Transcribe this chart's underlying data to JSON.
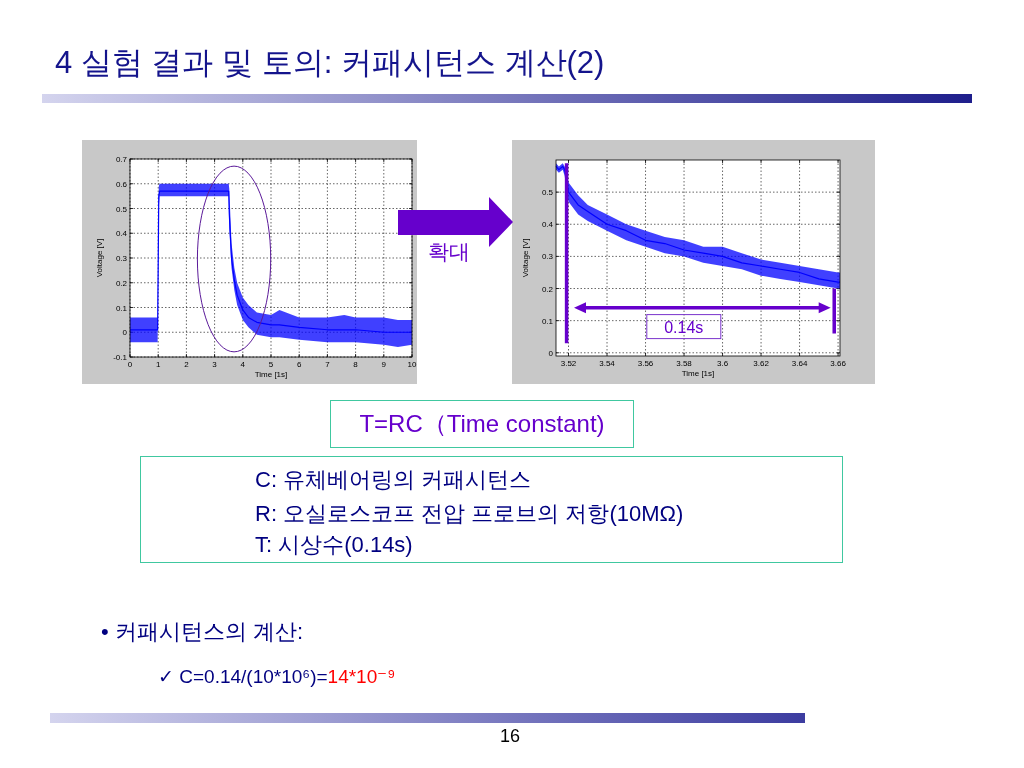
{
  "chart_data": [
    {
      "type": "line",
      "xlabel": "Time [1s]",
      "ylabel": "Voltage [V]",
      "xlim": [
        0,
        10
      ],
      "ylim": [
        -0.1,
        0.7
      ],
      "xticks": [
        0,
        1,
        2,
        3,
        4,
        5,
        6,
        7,
        8,
        9,
        10
      ],
      "yticks": [
        -0.1,
        0,
        0.1,
        0.2,
        0.3,
        0.4,
        0.5,
        0.6,
        0.7
      ],
      "grid": true,
      "series": [
        {
          "color": "#0000ff",
          "x": [
            0,
            0.5,
            0.98,
            1.02,
            1.05,
            2,
            3,
            3.5,
            3.52,
            3.6,
            3.7,
            3.8,
            3.9,
            4.0,
            4.2,
            4.5,
            5,
            5.3,
            6,
            7,
            7.6,
            8,
            9,
            9.5,
            10
          ],
          "values": [
            0.01,
            0.01,
            0.01,
            0.55,
            0.57,
            0.57,
            0.57,
            0.57,
            0.48,
            0.3,
            0.21,
            0.15,
            0.12,
            0.09,
            0.06,
            0.04,
            0.03,
            0.03,
            0.02,
            0.01,
            0.01,
            0.01,
            0,
            0,
            0
          ],
          "lower": [
            -0.04,
            -0.04,
            -0.04,
            0.5,
            0.55,
            0.55,
            0.55,
            0.55,
            0.42,
            0.26,
            0.17,
            0.11,
            0.08,
            0.05,
            0.02,
            -0.01,
            -0.02,
            -0.02,
            -0.03,
            -0.04,
            -0.04,
            -0.04,
            -0.05,
            -0.06,
            -0.05
          ],
          "upper": [
            0.06,
            0.06,
            0.06,
            0.59,
            0.6,
            0.6,
            0.6,
            0.6,
            0.58,
            0.36,
            0.26,
            0.2,
            0.17,
            0.14,
            0.11,
            0.08,
            0.07,
            0.09,
            0.06,
            0.06,
            0.07,
            0.06,
            0.06,
            0.05,
            0.05
          ]
        }
      ]
    },
    {
      "type": "line",
      "xlabel": "Time [1s]",
      "ylabel": "Voltage [V]",
      "xlim": [
        3.5135,
        3.661
      ],
      "ylim": [
        -0.01,
        0.6
      ],
      "xticks": [
        3.52,
        3.54,
        3.56,
        3.58,
        3.6,
        3.62,
        3.64,
        3.66
      ],
      "yticks": [
        0,
        0.1,
        0.2,
        0.3,
        0.4,
        0.5
      ],
      "grid": true,
      "series": [
        {
          "color": "#0000ff",
          "x": [
            3.5135,
            3.515,
            3.517,
            3.518,
            3.519,
            3.52,
            3.525,
            3.53,
            3.54,
            3.55,
            3.56,
            3.57,
            3.58,
            3.59,
            3.6,
            3.61,
            3.62,
            3.63,
            3.64,
            3.65,
            3.66,
            3.661
          ],
          "values": [
            0.58,
            0.57,
            0.58,
            0.57,
            0.54,
            0.5,
            0.46,
            0.44,
            0.4,
            0.38,
            0.35,
            0.34,
            0.32,
            0.31,
            0.3,
            0.28,
            0.27,
            0.26,
            0.25,
            0.23,
            0.22,
            0.22
          ],
          "lower": [
            0.57,
            0.56,
            0.57,
            0.55,
            0.51,
            0.47,
            0.43,
            0.41,
            0.38,
            0.35,
            0.33,
            0.31,
            0.3,
            0.28,
            0.27,
            0.26,
            0.24,
            0.23,
            0.22,
            0.21,
            0.2,
            0.2
          ],
          "upper": [
            0.59,
            0.58,
            0.59,
            0.58,
            0.57,
            0.53,
            0.49,
            0.46,
            0.43,
            0.4,
            0.38,
            0.36,
            0.35,
            0.33,
            0.33,
            0.31,
            0.29,
            0.28,
            0.27,
            0.26,
            0.25,
            0.25
          ]
        },
        {
          "color": "#6600cc",
          "x": [
            3.519,
            3.519
          ],
          "values": [
            0.59,
            0.03
          ]
        },
        {
          "color": "#6600cc",
          "x": [
            3.658,
            3.658
          ],
          "values": [
            0.2,
            0.06
          ]
        },
        {
          "color": "#6600cc",
          "x": [
            3.527,
            3.652
          ],
          "values": [
            0.14,
            0.14
          ],
          "marker": "triangle"
        }
      ],
      "annotations": [
        "0.14s"
      ]
    },
    {
      "type": "other",
      "title": "4 실험 결과 및 토의: 커패시턴스 계산(2)",
      "annotations": [
        "확대",
        "T=RC（Time constant)",
        "C: 유체베어링의 커패시턴스",
        "R: 오실로스코프 전압 프로브의 저항(10MΩ)",
        "T: 시상수(0.14s)",
        "• 커패시턴스의 계산:",
        "✓ C=0.14/(10*10⁶)=",
        "14*10⁻⁹",
        "16"
      ]
    }
  ]
}
